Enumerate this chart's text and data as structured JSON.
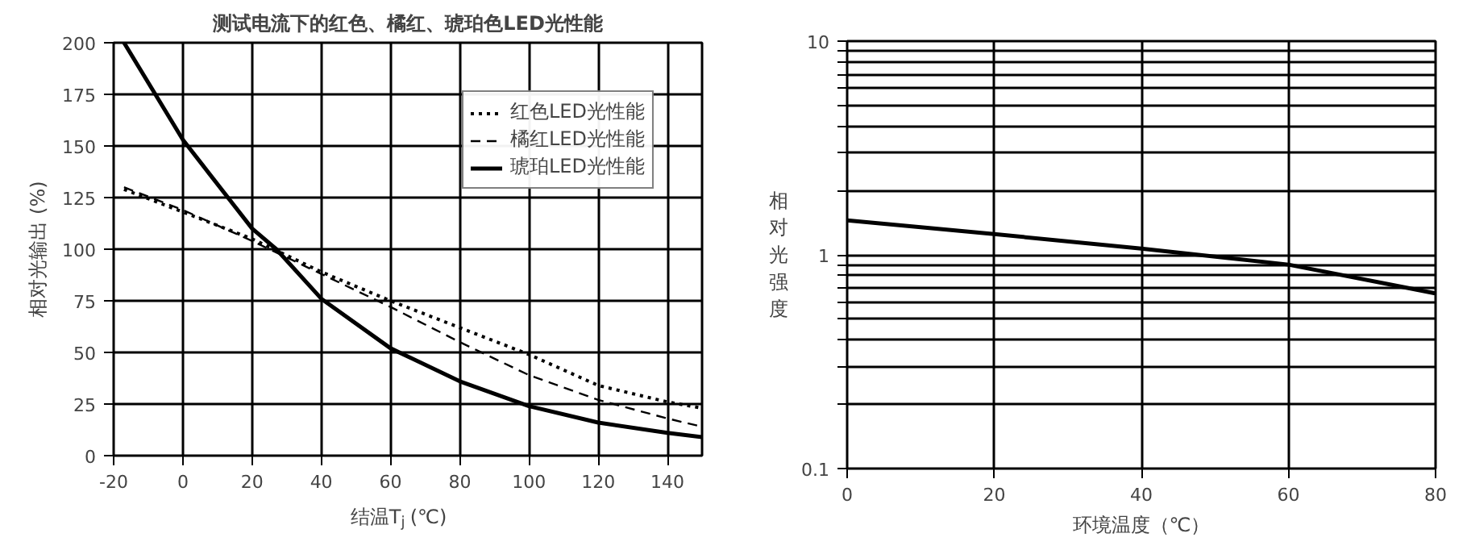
{
  "chart_data": [
    {
      "type": "line",
      "title": "测试电流下的红色、橘红、琥珀色LED光性能",
      "xlabel": "结温T$_{j}$ (℃)",
      "ylabel": "相对光输出 (%)",
      "xlim": [
        -20,
        150
      ],
      "ylim": [
        0,
        200
      ],
      "xticks": [
        -20,
        0,
        20,
        40,
        60,
        80,
        100,
        120,
        140
      ],
      "yticks": [
        0,
        25,
        50,
        75,
        100,
        125,
        150,
        175,
        200
      ],
      "grid": true,
      "legend": "top right",
      "series": [
        {
          "name": "红色LED光性能",
          "color": "#000000",
          "line_style": "dotted",
          "x": [
            -17,
            0,
            20,
            40,
            60,
            80,
            100,
            120,
            140,
            150
          ],
          "values": [
            129,
            118,
            105,
            89,
            75,
            62,
            49,
            34,
            26,
            23
          ]
        },
        {
          "name": "橘红LED光性能",
          "color": "#000000",
          "line_style": "dashed",
          "x": [
            -17,
            0,
            20,
            40,
            60,
            80,
            100,
            120,
            140,
            150
          ],
          "values": [
            130,
            119,
            104,
            88,
            72,
            55,
            39,
            27,
            18,
            14
          ]
        },
        {
          "name": "琥珀LED光性能",
          "color": "#000000",
          "line_style": "solid",
          "x": [
            -17,
            0,
            20,
            27,
            40,
            60,
            80,
            100,
            120,
            140,
            150
          ],
          "values": [
            200,
            153,
            110,
            100,
            76,
            52,
            36,
            24,
            16,
            11,
            9
          ]
        }
      ]
    },
    {
      "type": "line",
      "xlabel": "环境温度（℃）",
      "ylabel": "相对光强度",
      "log": "y",
      "xlim": [
        0,
        80
      ],
      "ylim": [
        0.1,
        10
      ],
      "xticks": [
        0,
        20,
        40,
        60,
        80
      ],
      "yticks": [
        0.1,
        {
          "value": 0.2,
          "label": null
        },
        {
          "value": 0.3,
          "label": null
        },
        {
          "value": 0.4,
          "label": null
        },
        {
          "value": 0.5,
          "label": null
        },
        {
          "value": 0.6,
          "label": null
        },
        {
          "value": 0.7,
          "label": null
        },
        {
          "value": 0.8,
          "label": null
        },
        {
          "value": 0.9,
          "label": null
        },
        1,
        {
          "value": 2,
          "label": null
        },
        {
          "value": 3,
          "label": null
        },
        {
          "value": 4,
          "label": null
        },
        {
          "value": 5,
          "label": null
        },
        {
          "value": 6,
          "label": null
        },
        {
          "value": 7,
          "label": null
        },
        {
          "value": 8,
          "label": null
        },
        {
          "value": 9,
          "label": null
        },
        10
      ],
      "grid": true,
      "series": [
        {
          "color": "#000000",
          "line_style": "solid",
          "x": [
            0,
            20,
            40,
            60,
            80
          ],
          "values": [
            1.45,
            1.25,
            1.07,
            0.9,
            0.66
          ]
        }
      ]
    }
  ]
}
